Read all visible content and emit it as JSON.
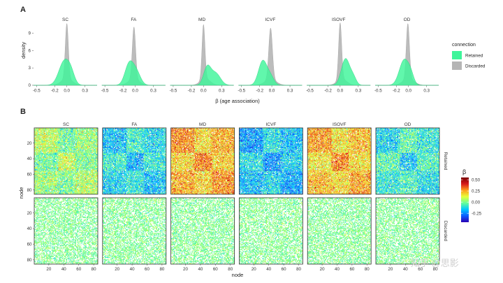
{
  "panel_labels": [
    "A",
    "B"
  ],
  "watermark": "知乎 @思影",
  "chart_data": [
    {
      "type": "area",
      "subtype": "density",
      "facets": [
        "SC",
        "FA",
        "MD",
        "ICVF",
        "ISOVF",
        "OD"
      ],
      "xlabel": "β  (age association)",
      "ylabel": "density",
      "xlim": [
        -0.55,
        0.5
      ],
      "ylim": [
        0,
        11
      ],
      "x_ticks": [
        -0.5,
        -0.2,
        0.0,
        0.3
      ],
      "x_tick_labels": [
        "-0.5",
        "-0.2",
        "0.0",
        "0.3"
      ],
      "y_ticks": [
        0,
        3,
        6,
        9
      ],
      "y_tick_labels": [
        "0",
        "3",
        "6",
        "9"
      ],
      "legend": {
        "title": "connection",
        "position": "right",
        "entries": [
          {
            "name": "Retained",
            "color": "#3ef59a"
          },
          {
            "name": "Discarded",
            "color": "#b5b5b5"
          }
        ]
      },
      "series": [
        {
          "facet": "SC",
          "name": "Retained",
          "components": [
            [
              -0.04,
              0.09,
              4.2
            ],
            [
              0.07,
              0.06,
              1.4
            ]
          ]
        },
        {
          "facet": "SC",
          "name": "Discarded",
          "components": [
            [
              0.0,
              0.025,
              9.5
            ],
            [
              0.0,
              0.09,
              1.2
            ]
          ]
        },
        {
          "facet": "FA",
          "name": "Retained",
          "components": [
            [
              -0.1,
              0.07,
              3.6
            ],
            [
              0.02,
              0.07,
              2.2
            ]
          ]
        },
        {
          "facet": "FA",
          "name": "Discarded",
          "components": [
            [
              -0.02,
              0.027,
              9.0
            ],
            [
              -0.02,
              0.09,
              1.1
            ]
          ]
        },
        {
          "facet": "MD",
          "name": "Retained",
          "components": [
            [
              0.06,
              0.06,
              3.0
            ],
            [
              0.2,
              0.08,
              2.1
            ]
          ]
        },
        {
          "facet": "MD",
          "name": "Discarded",
          "components": [
            [
              0.0,
              0.024,
              9.4
            ],
            [
              0.03,
              0.08,
              1.2
            ]
          ]
        },
        {
          "facet": "ICVF",
          "name": "Retained",
          "components": [
            [
              -0.15,
              0.07,
              4.2
            ],
            [
              -0.02,
              0.06,
              1.4
            ]
          ]
        },
        {
          "facet": "ICVF",
          "name": "Discarded",
          "components": [
            [
              -0.02,
              0.03,
              8.8
            ],
            [
              -0.02,
              0.09,
              1.1
            ]
          ]
        },
        {
          "facet": "ISOVF",
          "name": "Retained",
          "components": [
            [
              0.09,
              0.07,
              4.6
            ],
            [
              0.22,
              0.05,
              1.2
            ]
          ]
        },
        {
          "facet": "ISOVF",
          "name": "Discarded",
          "components": [
            [
              0.0,
              0.025,
              9.8
            ],
            [
              0.03,
              0.08,
              1.1
            ]
          ]
        },
        {
          "facet": "OD",
          "name": "Retained",
          "components": [
            [
              -0.07,
              0.08,
              4.4
            ],
            [
              0.04,
              0.05,
              1.3
            ]
          ]
        },
        {
          "facet": "OD",
          "name": "Discarded",
          "components": [
            [
              -0.01,
              0.026,
              9.5
            ],
            [
              0.0,
              0.09,
              1.2
            ]
          ]
        }
      ]
    },
    {
      "type": "heatmap",
      "columns": [
        "SC",
        "FA",
        "MD",
        "ICVF",
        "ISOVF",
        "OD"
      ],
      "rows": [
        "Retained",
        "Discarded"
      ],
      "xlabel": "node",
      "ylabel": "node",
      "n_nodes": 85,
      "x_ticks": [
        20,
        40,
        60,
        80
      ],
      "y_ticks": [
        20,
        40,
        60,
        80
      ],
      "value_label": "β",
      "color_limits": [
        -0.45,
        0.55
      ],
      "colorbar_ticks": [
        0.5,
        0.25,
        0.0,
        -0.25
      ],
      "colorbar_tick_labels": [
        "0.50",
        "0.25",
        "0.00",
        "-0.25"
      ],
      "colormap": [
        "#2b00b4",
        "#0a5cff",
        "#00c8ff",
        "#66ff99",
        "#e6ff3a",
        "#ff9d1a",
        "#d7191c",
        "#7a0000"
      ],
      "mean_beta": {
        "Retained": {
          "SC": 0.02,
          "FA": -0.12,
          "MD": 0.22,
          "ICVF": -0.16,
          "ISOVF": 0.2,
          "OD": -0.08
        },
        "Discarded": {
          "SC": 0.0,
          "FA": 0.0,
          "MD": 0.0,
          "ICVF": 0.0,
          "ISOVF": 0.0,
          "OD": 0.0
        }
      },
      "discarded_density": 0.55
    }
  ]
}
